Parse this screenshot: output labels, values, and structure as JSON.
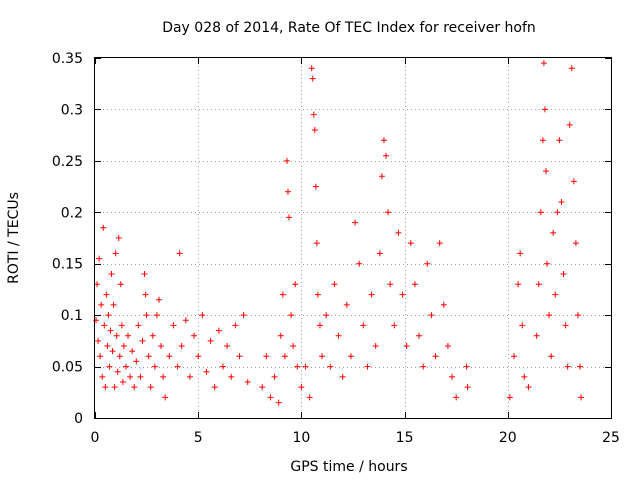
{
  "chart_data": {
    "type": "scatter",
    "title": "Day 028 of 2014, Rate Of TEC Index for receiver hofn",
    "xlabel": "GPS time / hours",
    "ylabel": "ROTI / TECUs",
    "xlim": [
      0,
      25
    ],
    "ylim": [
      0,
      0.35
    ],
    "xticks": [
      0,
      5,
      10,
      15,
      20,
      25
    ],
    "yticks": [
      0,
      0.05,
      0.1,
      0.15,
      0.2,
      0.25,
      0.3,
      0.35
    ],
    "xtick_labels": [
      "0",
      "5",
      "10",
      "15",
      "20",
      "25"
    ],
    "ytick_labels": [
      "0",
      "0.05",
      "0.1",
      "0.15",
      "0.2",
      "0.25",
      "0.3",
      "0.35"
    ],
    "grid": true,
    "legend": "none",
    "marker": "+",
    "color": "#ff0000",
    "series": [
      {
        "points": [
          [
            0.05,
            0.095
          ],
          [
            0.1,
            0.13
          ],
          [
            0.15,
            0.075
          ],
          [
            0.2,
            0.155
          ],
          [
            0.25,
            0.06
          ],
          [
            0.3,
            0.11
          ],
          [
            0.35,
            0.04
          ],
          [
            0.4,
            0.185
          ],
          [
            0.45,
            0.09
          ],
          [
            0.5,
            0.03
          ],
          [
            0.55,
            0.12
          ],
          [
            0.6,
            0.07
          ],
          [
            0.65,
            0.1
          ],
          [
            0.7,
            0.05
          ],
          [
            0.75,
            0.085
          ],
          [
            0.8,
            0.14
          ],
          [
            0.85,
            0.065
          ],
          [
            0.9,
            0.11
          ],
          [
            0.95,
            0.03
          ],
          [
            1.0,
            0.16
          ],
          [
            1.05,
            0.08
          ],
          [
            1.1,
            0.045
          ],
          [
            1.15,
            0.175
          ],
          [
            1.2,
            0.06
          ],
          [
            1.25,
            0.13
          ],
          [
            1.3,
            0.09
          ],
          [
            1.35,
            0.035
          ],
          [
            1.4,
            0.07
          ],
          [
            1.5,
            0.05
          ],
          [
            1.6,
            0.08
          ],
          [
            1.7,
            0.04
          ],
          [
            1.8,
            0.065
          ],
          [
            1.9,
            0.03
          ],
          [
            2.0,
            0.055
          ],
          [
            2.1,
            0.09
          ],
          [
            2.2,
            0.04
          ],
          [
            2.3,
            0.075
          ],
          [
            2.4,
            0.14
          ],
          [
            2.45,
            0.12
          ],
          [
            2.5,
            0.1
          ],
          [
            2.6,
            0.06
          ],
          [
            2.7,
            0.03
          ],
          [
            2.8,
            0.08
          ],
          [
            2.9,
            0.05
          ],
          [
            3.0,
            0.1
          ],
          [
            3.1,
            0.115
          ],
          [
            3.2,
            0.07
          ],
          [
            3.3,
            0.04
          ],
          [
            3.4,
            0.02
          ],
          [
            3.6,
            0.06
          ],
          [
            3.8,
            0.09
          ],
          [
            4.0,
            0.05
          ],
          [
            4.1,
            0.16
          ],
          [
            4.2,
            0.07
          ],
          [
            4.4,
            0.095
          ],
          [
            4.6,
            0.04
          ],
          [
            4.8,
            0.08
          ],
          [
            5.0,
            0.06
          ],
          [
            5.2,
            0.1
          ],
          [
            5.4,
            0.045
          ],
          [
            5.6,
            0.075
          ],
          [
            5.8,
            0.03
          ],
          [
            6.0,
            0.085
          ],
          [
            6.2,
            0.05
          ],
          [
            6.4,
            0.07
          ],
          [
            6.6,
            0.04
          ],
          [
            6.8,
            0.09
          ],
          [
            7.0,
            0.06
          ],
          [
            7.2,
            0.1
          ],
          [
            7.4,
            0.035
          ],
          [
            8.1,
            0.03
          ],
          [
            8.3,
            0.06
          ],
          [
            8.5,
            0.02
          ],
          [
            8.7,
            0.04
          ],
          [
            8.9,
            0.015
          ],
          [
            9.0,
            0.08
          ],
          [
            9.1,
            0.12
          ],
          [
            9.2,
            0.06
          ],
          [
            9.3,
            0.25
          ],
          [
            9.35,
            0.22
          ],
          [
            9.4,
            0.195
          ],
          [
            9.5,
            0.1
          ],
          [
            9.6,
            0.07
          ],
          [
            9.7,
            0.13
          ],
          [
            9.8,
            0.05
          ],
          [
            10.0,
            0.03
          ],
          [
            10.2,
            0.05
          ],
          [
            10.4,
            0.02
          ],
          [
            10.5,
            0.34
          ],
          [
            10.55,
            0.33
          ],
          [
            10.6,
            0.295
          ],
          [
            10.65,
            0.28
          ],
          [
            10.7,
            0.225
          ],
          [
            10.75,
            0.17
          ],
          [
            10.8,
            0.12
          ],
          [
            10.9,
            0.09
          ],
          [
            11.0,
            0.06
          ],
          [
            11.2,
            0.1
          ],
          [
            11.4,
            0.05
          ],
          [
            11.6,
            0.13
          ],
          [
            11.8,
            0.08
          ],
          [
            12.0,
            0.04
          ],
          [
            12.2,
            0.11
          ],
          [
            12.4,
            0.06
          ],
          [
            12.6,
            0.19
          ],
          [
            12.8,
            0.15
          ],
          [
            13.0,
            0.09
          ],
          [
            13.2,
            0.05
          ],
          [
            13.4,
            0.12
          ],
          [
            13.6,
            0.07
          ],
          [
            13.8,
            0.16
          ],
          [
            13.9,
            0.235
          ],
          [
            14.0,
            0.27
          ],
          [
            14.1,
            0.255
          ],
          [
            14.2,
            0.2
          ],
          [
            14.3,
            0.13
          ],
          [
            14.5,
            0.09
          ],
          [
            14.7,
            0.18
          ],
          [
            14.9,
            0.12
          ],
          [
            15.1,
            0.07
          ],
          [
            15.3,
            0.17
          ],
          [
            15.5,
            0.13
          ],
          [
            15.7,
            0.08
          ],
          [
            15.9,
            0.05
          ],
          [
            16.1,
            0.15
          ],
          [
            16.3,
            0.1
          ],
          [
            16.5,
            0.06
          ],
          [
            16.7,
            0.17
          ],
          [
            16.9,
            0.11
          ],
          [
            17.1,
            0.07
          ],
          [
            17.3,
            0.04
          ],
          [
            17.5,
            0.02
          ],
          [
            18.0,
            0.05
          ],
          [
            18.05,
            0.03
          ],
          [
            20.1,
            0.02
          ],
          [
            20.3,
            0.06
          ],
          [
            20.5,
            0.13
          ],
          [
            20.6,
            0.16
          ],
          [
            20.7,
            0.09
          ],
          [
            20.8,
            0.04
          ],
          [
            21.0,
            0.03
          ],
          [
            21.4,
            0.08
          ],
          [
            21.5,
            0.13
          ],
          [
            21.6,
            0.2
          ],
          [
            21.7,
            0.27
          ],
          [
            21.75,
            0.345
          ],
          [
            21.8,
            0.3
          ],
          [
            21.85,
            0.24
          ],
          [
            21.9,
            0.15
          ],
          [
            22.0,
            0.1
          ],
          [
            22.1,
            0.06
          ],
          [
            22.2,
            0.18
          ],
          [
            22.3,
            0.12
          ],
          [
            22.4,
            0.2
          ],
          [
            22.5,
            0.27
          ],
          [
            22.6,
            0.21
          ],
          [
            22.7,
            0.14
          ],
          [
            22.8,
            0.09
          ],
          [
            22.9,
            0.05
          ],
          [
            23.0,
            0.285
          ],
          [
            23.1,
            0.34
          ],
          [
            23.2,
            0.23
          ],
          [
            23.3,
            0.17
          ],
          [
            23.4,
            0.1
          ],
          [
            23.5,
            0.05
          ],
          [
            23.55,
            0.02
          ]
        ]
      }
    ]
  }
}
